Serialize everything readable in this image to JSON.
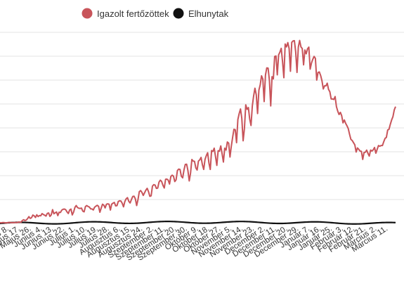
{
  "chart_data": {
    "type": "line",
    "title": "",
    "xlabel": "",
    "ylabel": "",
    "legend_position": "top",
    "grid": true,
    "y_axis_labels_visible": false,
    "tick_labels": [
      "Május 8.",
      "Május 17.",
      "Május 26.",
      "Június 4.",
      "Június 13.",
      "Június 22.",
      "Július 1.",
      "Július 10.",
      "Július 19.",
      "Július 28.",
      "Augusztus 6.",
      "Augusztus 15.",
      "Augusztus 24.",
      "Szeptember 2.",
      "Szeptember 11.",
      "Szeptember 20.",
      "Szeptember 30.",
      "Október 9.",
      "Október 18.",
      "Október 27.",
      "November 5.",
      "November 14.",
      "November 23.",
      "December 2.",
      "December 11.",
      "December 20.",
      "December 29.",
      "Január 7.",
      "Január 16.",
      "Január 25.",
      "Február 3.",
      "Február 12.",
      "Február 21.",
      "Március 2.",
      "Március 11."
    ],
    "series": [
      {
        "name": "Igazolt fertőzöttek",
        "color": "#c8545a",
        "values": [
          340,
          250,
          380,
          380,
          250,
          250,
          360,
          430,
          380,
          340,
          300,
          420,
          380,
          330,
          600,
          560,
          510,
          1230,
          1550,
          1180,
          1400,
          2030,
          2840,
          2110,
          2400,
          3510,
          3200,
          2500,
          3630,
          2880,
          3310,
          3210,
          4120,
          3730,
          3460,
          3080,
          4200,
          4370,
          2940,
          3620,
          5780,
          4040,
          4460,
          4800,
          3280,
          4690,
          4580,
          5570,
          5910,
          6030,
          5730,
          4830,
          4170,
          5630,
          6000,
          3570,
          4740,
          6690,
          7500,
          6650,
          6370,
          6280,
          6420,
          5140,
          4850,
          7040,
          7490,
          7100,
          6850,
          6100,
          6070,
          5650,
          6810,
          7240,
          7600,
          7170,
          4700,
          6400,
          8050,
          7650,
          6500,
          8020,
          8210,
          8030,
          5600,
          8080,
          8500,
          8780,
          7350,
          7450,
          9200,
          9480,
          9380,
          8450,
          6950,
          9180,
          10310,
          10800,
          9250,
          8580,
          9980,
          11290,
          11400,
          10270,
          7500,
          10000,
          13300,
          13760,
          13000,
          11720,
          12800,
          13960,
          14700,
          13300,
          11360,
          11550,
          15630,
          16240,
          16050,
          14660,
          14800,
          17300,
          18100,
          17570,
          15950,
          14840,
          18500,
          18550,
          18120,
          16500,
          19650,
          20200,
          19800,
          17530,
          18300,
          22150,
          22750,
          22570,
          19750,
          19100,
          22380,
          24700,
          24800,
          22140,
          17800,
          21100,
          26750,
          26100,
          26000,
          23250,
          22350,
          26120,
          26620,
          27650,
          24600,
          22600,
          26770,
          28400,
          29600,
          25240,
          22600,
          30500,
          30130,
          31500,
          27950,
          24300,
          30450,
          30250,
          32450,
          29150,
          25700,
          31500,
          30700,
          34100,
          33600,
          27800,
          32300,
          36000,
          39400,
          39250,
          33800,
          43500,
          46000,
          47900,
          44000,
          34600,
          39760,
          49650,
          47750,
          48500,
          43700,
          41000,
          49140,
          53400,
          56600,
          53900,
          46000,
          55800,
          58000,
          61800,
          60400,
          51000,
          62100,
          65100,
          65000,
          59900,
          49200,
          61450,
          60500,
          69900,
          70100,
          62200,
          70550,
          71700,
          73300,
          67700,
          61000,
          75100,
          73900,
          75700,
          73200,
          63700,
          75800,
          76400,
          76500,
          71800,
          63200,
          73800,
          76600,
          73900,
          73200,
          66400,
          72600,
          71000,
          73100,
          73800,
          64600,
          67100,
          68700,
          69900,
          69100,
          60000,
          63200,
          63400,
          61900,
          59700,
          56300,
          57600,
          57600,
          58700,
          56100,
          55100,
          52100,
          52100,
          51900,
          53100,
          48900,
          47000,
          45600,
          46500,
          45100,
          42100,
          43300,
          41900,
          40900,
          39700,
          37300,
          35200,
          34700,
          33800,
          32900,
          29900,
          31600,
          31000,
          30300,
          30200,
          26800,
          29700,
          29800,
          30700,
          29300,
          28200,
          30700,
          30300,
          30800,
          31800,
          29400,
          31000,
          32600,
          32300,
          32600,
          32600,
          34200,
          35600,
          36000,
          39100,
          39400,
          41500,
          43300,
          44700,
          47500,
          48900
        ]
      },
      {
        "name": "Elhunytak",
        "color": "#111111",
        "values": [
          1
        ]
      }
    ]
  }
}
